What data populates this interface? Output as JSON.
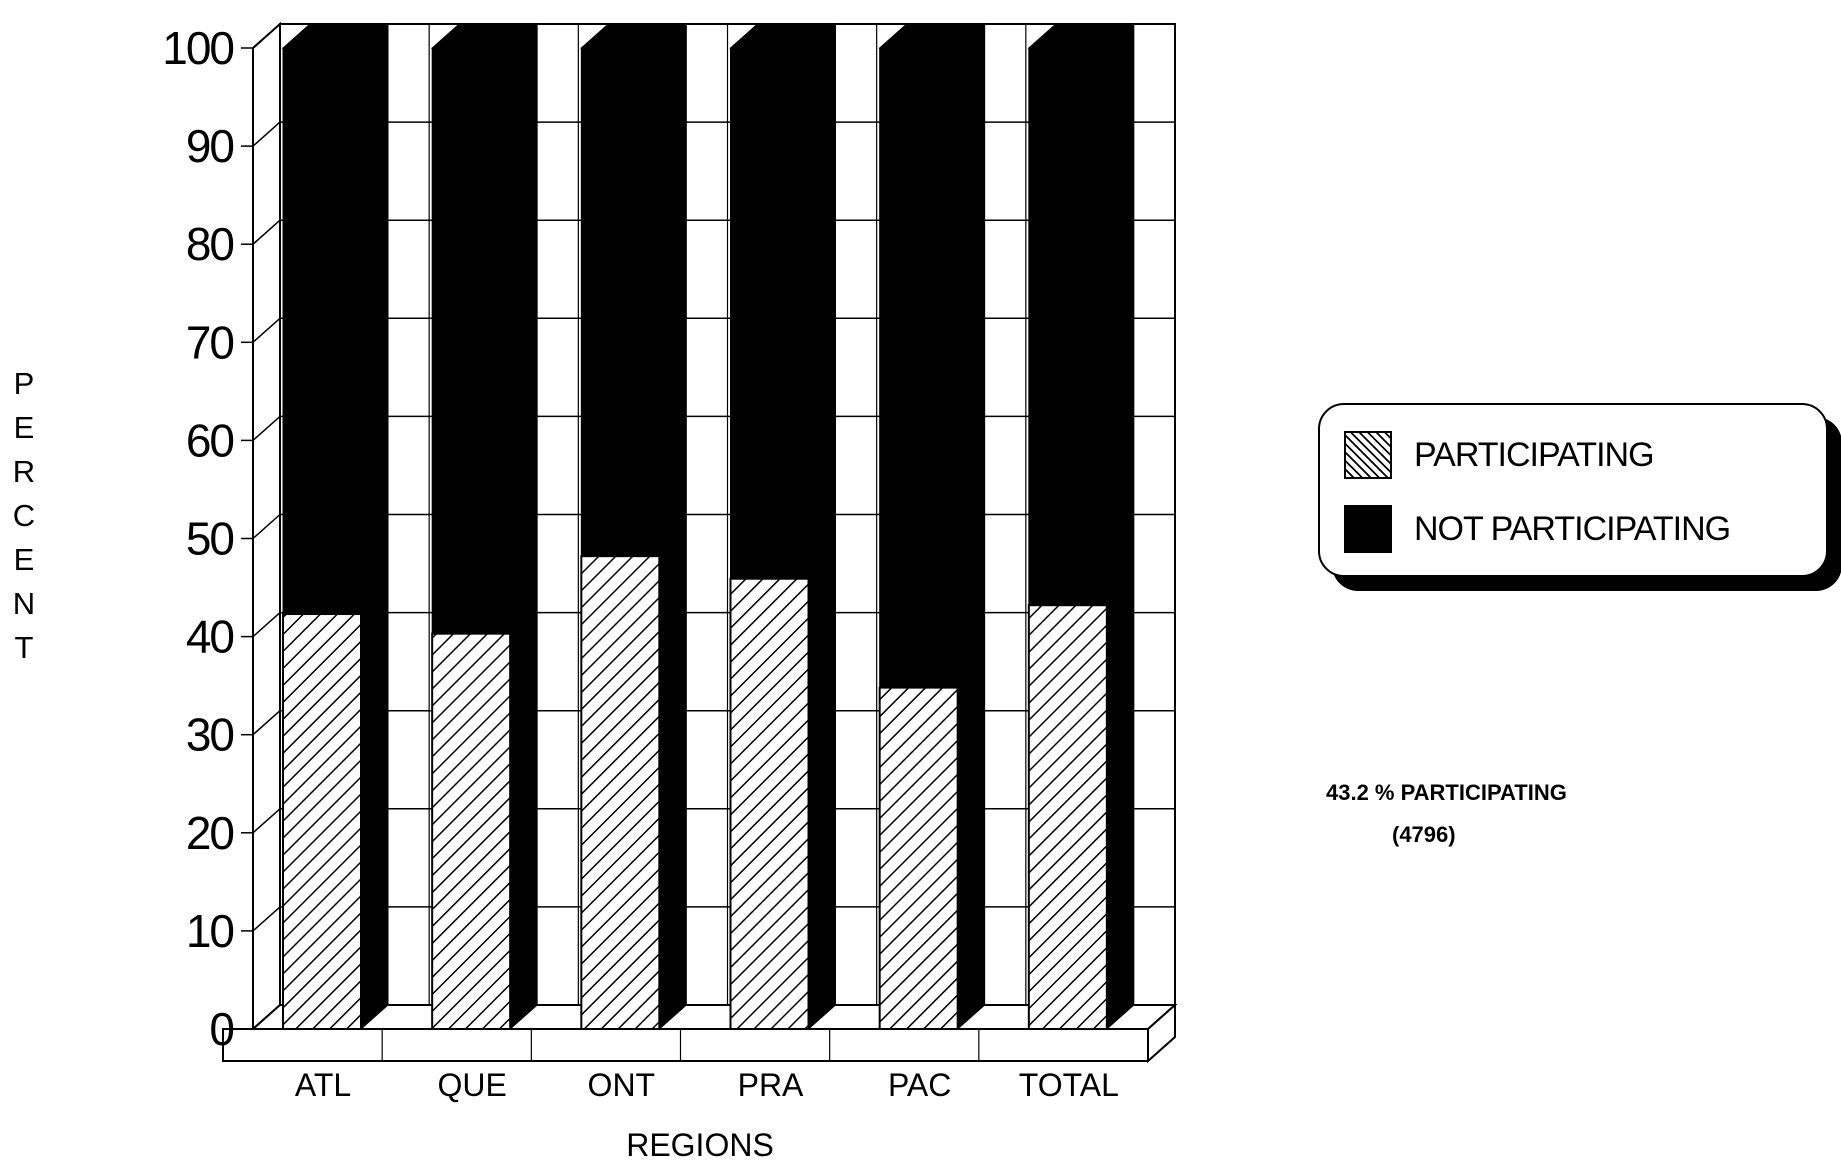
{
  "chart_data": {
    "type": "bar",
    "stacked": true,
    "style": "3d",
    "categories": [
      "ATL",
      "QUE",
      "ONT",
      "PRA",
      "PAC",
      "TOTAL"
    ],
    "series": [
      {
        "name": "PARTICIPATING",
        "pattern": "hatched",
        "values": [
          42.3,
          40.3,
          48.2,
          45.9,
          34.8,
          43.2
        ]
      },
      {
        "name": "NOT PARTICIPATING",
        "pattern": "solid",
        "color": "#000000",
        "values": [
          57.7,
          59.7,
          51.8,
          54.1,
          65.2,
          56.8
        ]
      }
    ],
    "xlabel": "REGIONS",
    "ylabel": "PERCENT",
    "ylim": [
      0,
      100
    ],
    "yticks": [
      0,
      10,
      20,
      30,
      40,
      50,
      60,
      70,
      80,
      90,
      100
    ],
    "grid": true,
    "legend_position": "right"
  },
  "legend": {
    "participating": "PARTICIPATING",
    "not_participating": "NOT PARTICIPATING"
  },
  "annotation": {
    "line1": "43.2 % PARTICIPATING",
    "line2": "(4796)"
  }
}
